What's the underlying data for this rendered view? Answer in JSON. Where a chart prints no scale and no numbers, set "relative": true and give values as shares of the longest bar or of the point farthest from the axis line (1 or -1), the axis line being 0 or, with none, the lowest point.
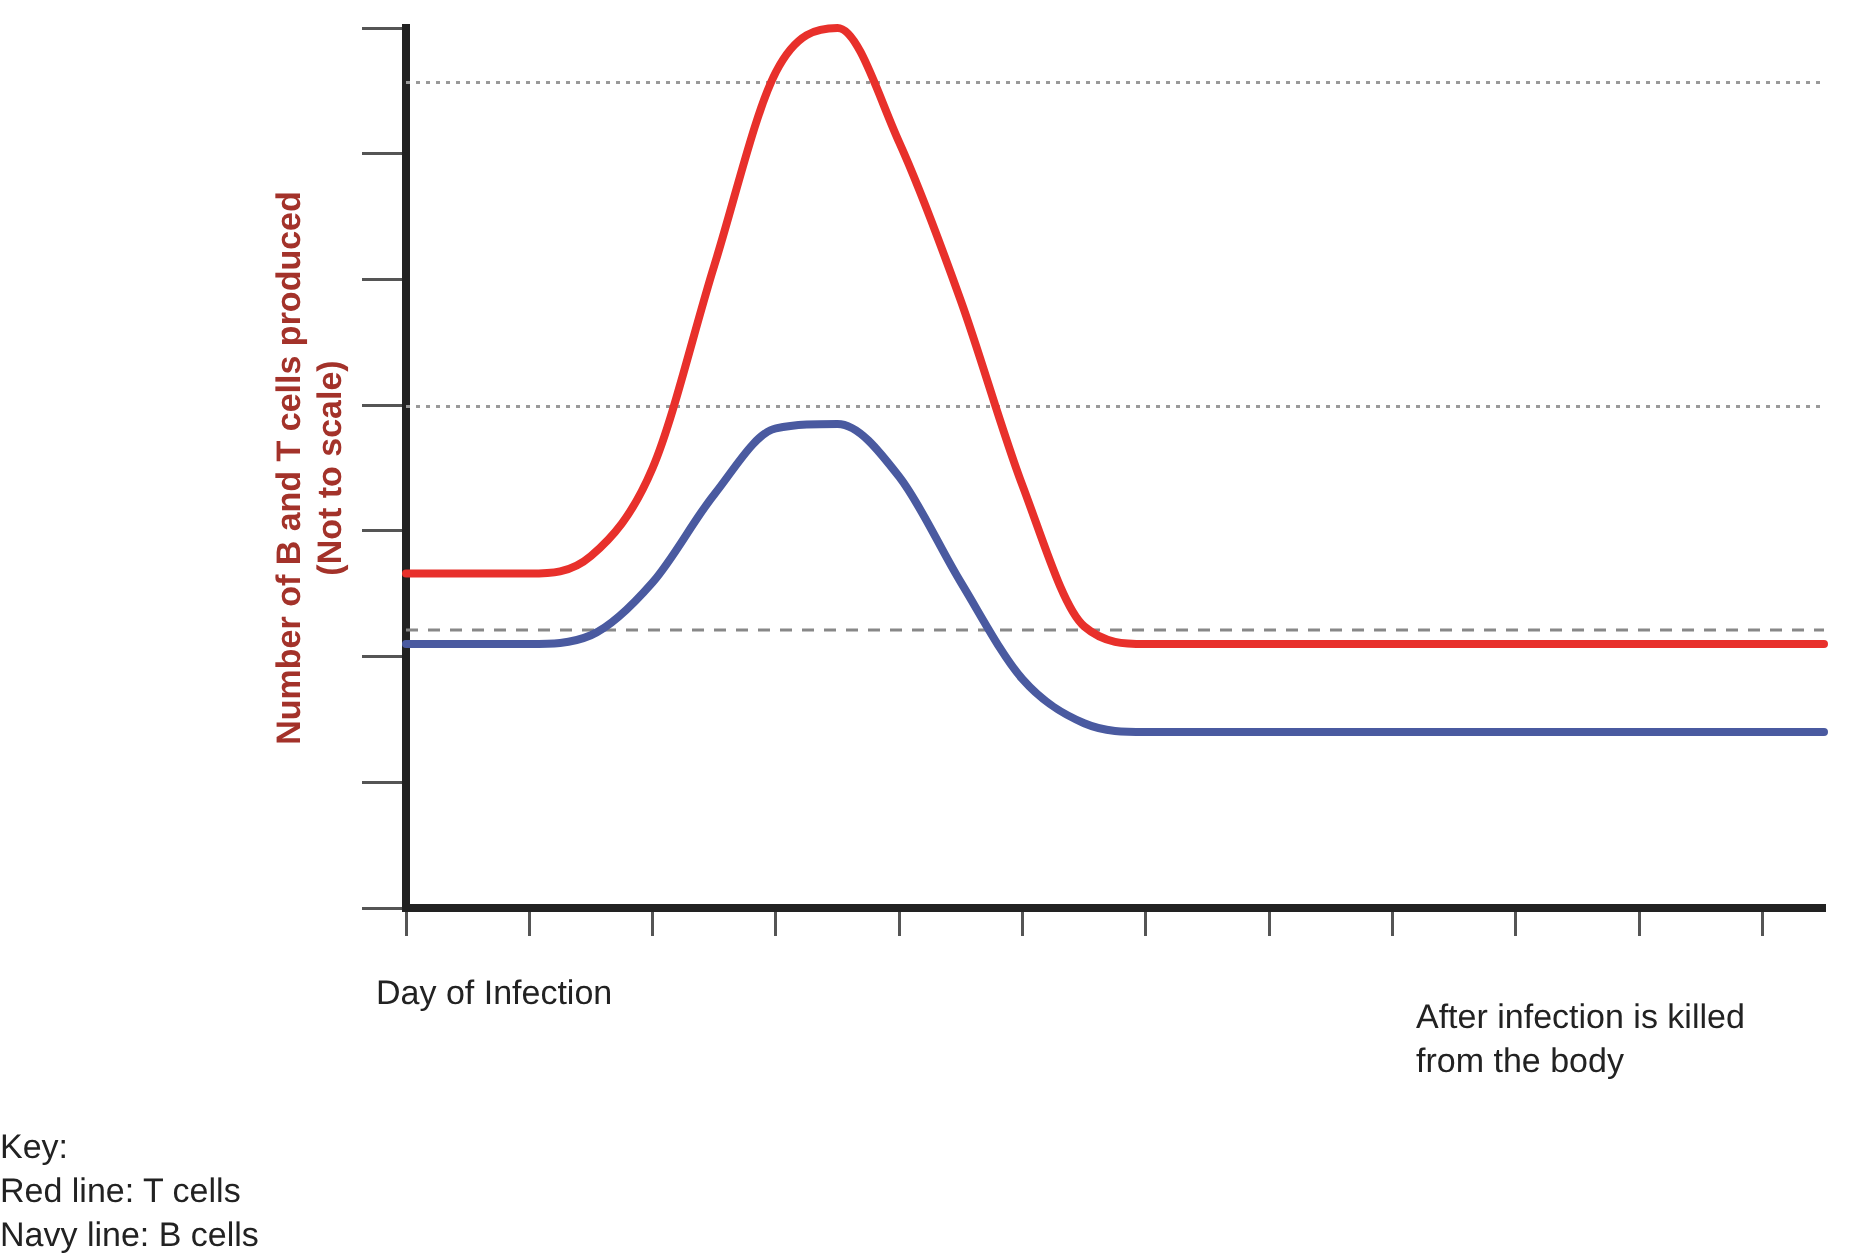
{
  "chart_data": {
    "type": "line",
    "relative": true,
    "ylabel": "Number of B and T cells produced\n(Not to scale)",
    "categories": [
      null,
      null,
      null,
      null,
      null,
      null,
      null,
      null,
      null,
      null,
      null,
      null,
      null,
      null,
      null,
      null,
      null,
      null,
      null,
      null,
      null,
      null,
      null,
      null
    ],
    "series": [
      {
        "color": "#e8302b",
        "values": [
          0.38,
          0.38,
          0.38,
          0.4,
          0.5,
          0.73,
          0.95,
          1,
          0.87,
          0.69,
          0.48,
          0.32,
          0.3,
          0.3,
          0.3,
          0.3,
          0.3,
          0.3,
          0.3,
          0.3,
          0.3,
          0.3,
          0.3,
          0.3
        ]
      },
      {
        "color": "#4a5aa0",
        "values": [
          0.3,
          0.3,
          0.3,
          0.31,
          0.37,
          0.47,
          0.545,
          0.55,
          0.49,
          0.37,
          0.26,
          0.21,
          0.2,
          0.2,
          0.2,
          0.2,
          0.2,
          0.2,
          0.2,
          0.2,
          0.2,
          0.2,
          0.2,
          0.2
        ]
      }
    ],
    "ref_lines": [
      {
        "axis": "y",
        "value": 0.938,
        "color": "#999999",
        "line_style": "dotted"
      },
      {
        "axis": "y",
        "value": 0.57,
        "color": "#999999",
        "line_style": "dotted"
      },
      {
        "axis": "y",
        "value": 0.316,
        "color": "#888888",
        "line_style": "dashed"
      }
    ],
    "annotations": [
      "Day of Infection",
      "After infection is killed from the body",
      "Key:\nRed line: T cells\nNavy line: B cells"
    ],
    "legend": false,
    "grid": false,
    "marker": "none",
    "line_style": "solid"
  }
}
